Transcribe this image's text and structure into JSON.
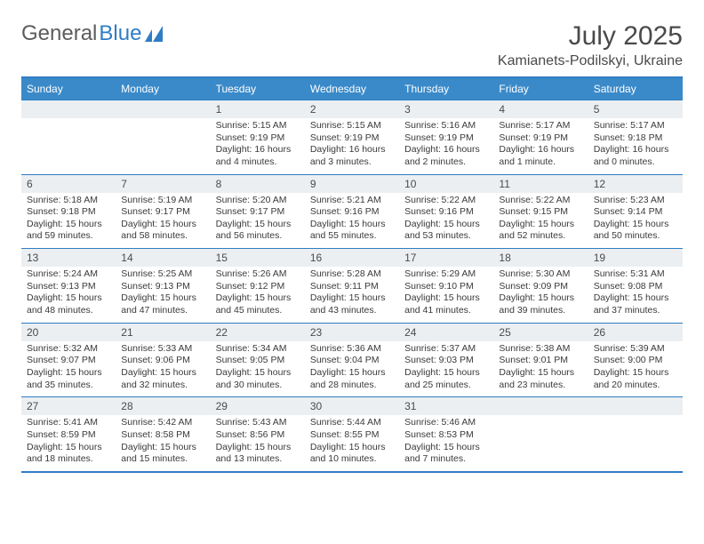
{
  "brand": {
    "part1": "General",
    "part2": "Blue"
  },
  "title": "July 2025",
  "location": "Kamianets-Podilskyi, Ukraine",
  "colors": {
    "header_bg": "#3a8ac9",
    "border": "#2f7dc4",
    "daynum_bg": "#eceff2",
    "text": "#3a3a3a"
  },
  "dow": [
    "Sunday",
    "Monday",
    "Tuesday",
    "Wednesday",
    "Thursday",
    "Friday",
    "Saturday"
  ],
  "weeks": [
    [
      null,
      null,
      {
        "n": "1",
        "sr": "5:15 AM",
        "ss": "9:19 PM",
        "dl": "16 hours and 4 minutes."
      },
      {
        "n": "2",
        "sr": "5:15 AM",
        "ss": "9:19 PM",
        "dl": "16 hours and 3 minutes."
      },
      {
        "n": "3",
        "sr": "5:16 AM",
        "ss": "9:19 PM",
        "dl": "16 hours and 2 minutes."
      },
      {
        "n": "4",
        "sr": "5:17 AM",
        "ss": "9:19 PM",
        "dl": "16 hours and 1 minute."
      },
      {
        "n": "5",
        "sr": "5:17 AM",
        "ss": "9:18 PM",
        "dl": "16 hours and 0 minutes."
      }
    ],
    [
      {
        "n": "6",
        "sr": "5:18 AM",
        "ss": "9:18 PM",
        "dl": "15 hours and 59 minutes."
      },
      {
        "n": "7",
        "sr": "5:19 AM",
        "ss": "9:17 PM",
        "dl": "15 hours and 58 minutes."
      },
      {
        "n": "8",
        "sr": "5:20 AM",
        "ss": "9:17 PM",
        "dl": "15 hours and 56 minutes."
      },
      {
        "n": "9",
        "sr": "5:21 AM",
        "ss": "9:16 PM",
        "dl": "15 hours and 55 minutes."
      },
      {
        "n": "10",
        "sr": "5:22 AM",
        "ss": "9:16 PM",
        "dl": "15 hours and 53 minutes."
      },
      {
        "n": "11",
        "sr": "5:22 AM",
        "ss": "9:15 PM",
        "dl": "15 hours and 52 minutes."
      },
      {
        "n": "12",
        "sr": "5:23 AM",
        "ss": "9:14 PM",
        "dl": "15 hours and 50 minutes."
      }
    ],
    [
      {
        "n": "13",
        "sr": "5:24 AM",
        "ss": "9:13 PM",
        "dl": "15 hours and 48 minutes."
      },
      {
        "n": "14",
        "sr": "5:25 AM",
        "ss": "9:13 PM",
        "dl": "15 hours and 47 minutes."
      },
      {
        "n": "15",
        "sr": "5:26 AM",
        "ss": "9:12 PM",
        "dl": "15 hours and 45 minutes."
      },
      {
        "n": "16",
        "sr": "5:28 AM",
        "ss": "9:11 PM",
        "dl": "15 hours and 43 minutes."
      },
      {
        "n": "17",
        "sr": "5:29 AM",
        "ss": "9:10 PM",
        "dl": "15 hours and 41 minutes."
      },
      {
        "n": "18",
        "sr": "5:30 AM",
        "ss": "9:09 PM",
        "dl": "15 hours and 39 minutes."
      },
      {
        "n": "19",
        "sr": "5:31 AM",
        "ss": "9:08 PM",
        "dl": "15 hours and 37 minutes."
      }
    ],
    [
      {
        "n": "20",
        "sr": "5:32 AM",
        "ss": "9:07 PM",
        "dl": "15 hours and 35 minutes."
      },
      {
        "n": "21",
        "sr": "5:33 AM",
        "ss": "9:06 PM",
        "dl": "15 hours and 32 minutes."
      },
      {
        "n": "22",
        "sr": "5:34 AM",
        "ss": "9:05 PM",
        "dl": "15 hours and 30 minutes."
      },
      {
        "n": "23",
        "sr": "5:36 AM",
        "ss": "9:04 PM",
        "dl": "15 hours and 28 minutes."
      },
      {
        "n": "24",
        "sr": "5:37 AM",
        "ss": "9:03 PM",
        "dl": "15 hours and 25 minutes."
      },
      {
        "n": "25",
        "sr": "5:38 AM",
        "ss": "9:01 PM",
        "dl": "15 hours and 23 minutes."
      },
      {
        "n": "26",
        "sr": "5:39 AM",
        "ss": "9:00 PM",
        "dl": "15 hours and 20 minutes."
      }
    ],
    [
      {
        "n": "27",
        "sr": "5:41 AM",
        "ss": "8:59 PM",
        "dl": "15 hours and 18 minutes."
      },
      {
        "n": "28",
        "sr": "5:42 AM",
        "ss": "8:58 PM",
        "dl": "15 hours and 15 minutes."
      },
      {
        "n": "29",
        "sr": "5:43 AM",
        "ss": "8:56 PM",
        "dl": "15 hours and 13 minutes."
      },
      {
        "n": "30",
        "sr": "5:44 AM",
        "ss": "8:55 PM",
        "dl": "15 hours and 10 minutes."
      },
      {
        "n": "31",
        "sr": "5:46 AM",
        "ss": "8:53 PM",
        "dl": "15 hours and 7 minutes."
      },
      null,
      null
    ]
  ]
}
